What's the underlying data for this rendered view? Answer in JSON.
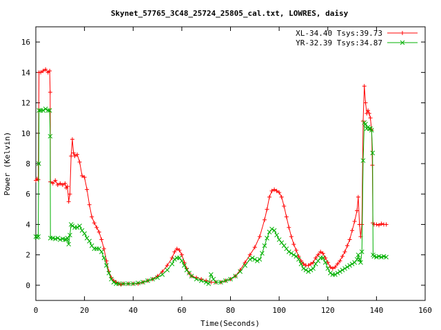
{
  "chart_data": {
    "type": "line",
    "title": "Skynet_57765_3C48_25724_25805_cal.txt, LOWRES, daisy",
    "xlabel": "Time(Seconds)",
    "ylabel": "Power (Kelvin)",
    "xlim": [
      0,
      160
    ],
    "ylim": [
      -1,
      17
    ],
    "x_ticks": [
      0,
      20,
      40,
      60,
      80,
      100,
      120,
      140,
      160
    ],
    "y_ticks": [
      0,
      2,
      4,
      6,
      8,
      10,
      12,
      14,
      16
    ],
    "grid": false,
    "legend_position": "top-right",
    "series": [
      {
        "name": "XL-34.40 Tsys:39.73",
        "color": "#ff0000",
        "marker": "plus",
        "points": [
          [
            0,
            6.9
          ],
          [
            0.5,
            7.0
          ],
          [
            1,
            6.95
          ],
          [
            1.3,
            14.0
          ],
          [
            2,
            14.0
          ],
          [
            3,
            14.1
          ],
          [
            4,
            14.2
          ],
          [
            5,
            14.0
          ],
          [
            5.7,
            14.1
          ],
          [
            5.9,
            12.7
          ],
          [
            6,
            6.8
          ],
          [
            7,
            6.7
          ],
          [
            8,
            6.9
          ],
          [
            9,
            6.6
          ],
          [
            10,
            6.7
          ],
          [
            11,
            6.6
          ],
          [
            12,
            6.7
          ],
          [
            12.5,
            6.4
          ],
          [
            13,
            6.5
          ],
          [
            13.5,
            5.5
          ],
          [
            14,
            6.0
          ],
          [
            14.5,
            8.5
          ],
          [
            15,
            9.6
          ],
          [
            15.5,
            8.7
          ],
          [
            16,
            8.5
          ],
          [
            17,
            8.6
          ],
          [
            18,
            8.1
          ],
          [
            19,
            7.2
          ],
          [
            20,
            7.1
          ],
          [
            21,
            6.3
          ],
          [
            22,
            5.3
          ],
          [
            23,
            4.5
          ],
          [
            24,
            4.1
          ],
          [
            25,
            3.8
          ],
          [
            26,
            3.5
          ],
          [
            27,
            3.0
          ],
          [
            28,
            2.4
          ],
          [
            29,
            1.6
          ],
          [
            30,
            0.9
          ],
          [
            31,
            0.5
          ],
          [
            32,
            0.3
          ],
          [
            33,
            0.2
          ],
          [
            34,
            0.1
          ],
          [
            35,
            0.05
          ],
          [
            36,
            0.1
          ],
          [
            38,
            0.1
          ],
          [
            40,
            0.1
          ],
          [
            42,
            0.1
          ],
          [
            44,
            0.2
          ],
          [
            46,
            0.3
          ],
          [
            48,
            0.4
          ],
          [
            50,
            0.6
          ],
          [
            52,
            0.9
          ],
          [
            54,
            1.3
          ],
          [
            56,
            1.8
          ],
          [
            57,
            2.2
          ],
          [
            58,
            2.4
          ],
          [
            59,
            2.3
          ],
          [
            60,
            2.0
          ],
          [
            61,
            1.5
          ],
          [
            62,
            1.1
          ],
          [
            63,
            0.8
          ],
          [
            64,
            0.6
          ],
          [
            66,
            0.5
          ],
          [
            68,
            0.4
          ],
          [
            70,
            0.3
          ],
          [
            72,
            0.2
          ],
          [
            74,
            0.2
          ],
          [
            76,
            0.2
          ],
          [
            78,
            0.3
          ],
          [
            80,
            0.4
          ],
          [
            82,
            0.6
          ],
          [
            84,
            1.0
          ],
          [
            86,
            1.5
          ],
          [
            88,
            2.0
          ],
          [
            90,
            2.5
          ],
          [
            92,
            3.2
          ],
          [
            94,
            4.3
          ],
          [
            95,
            5.0
          ],
          [
            96,
            5.8
          ],
          [
            97,
            6.2
          ],
          [
            98,
            6.3
          ],
          [
            99,
            6.2
          ],
          [
            100,
            6.1
          ],
          [
            101,
            5.8
          ],
          [
            102,
            5.2
          ],
          [
            103,
            4.5
          ],
          [
            104,
            3.8
          ],
          [
            105,
            3.2
          ],
          [
            106,
            2.7
          ],
          [
            107,
            2.3
          ],
          [
            108,
            1.9
          ],
          [
            109,
            1.6
          ],
          [
            110,
            1.4
          ],
          [
            111,
            1.3
          ],
          [
            112,
            1.3
          ],
          [
            113,
            1.4
          ],
          [
            114,
            1.5
          ],
          [
            115,
            1.8
          ],
          [
            116,
            2.0
          ],
          [
            117,
            2.2
          ],
          [
            118,
            2.1
          ],
          [
            119,
            1.8
          ],
          [
            120,
            1.5
          ],
          [
            121,
            1.2
          ],
          [
            122,
            1.1
          ],
          [
            123,
            1.2
          ],
          [
            124,
            1.4
          ],
          [
            125,
            1.6
          ],
          [
            126,
            1.9
          ],
          [
            127,
            2.2
          ],
          [
            128,
            2.6
          ],
          [
            129,
            3.0
          ],
          [
            130,
            3.6
          ],
          [
            131,
            4.2
          ],
          [
            132,
            4.9
          ],
          [
            132.5,
            5.8
          ],
          [
            133,
            4.0
          ],
          [
            133.5,
            3.2
          ],
          [
            134,
            4.0
          ],
          [
            134.5,
            10.8
          ],
          [
            135,
            13.1
          ],
          [
            135.5,
            12.0
          ],
          [
            136,
            11.3
          ],
          [
            136.5,
            11.5
          ],
          [
            137,
            11.3
          ],
          [
            137.5,
            11.0
          ],
          [
            138,
            10.2
          ],
          [
            138.3,
            7.9
          ],
          [
            138.5,
            4.1
          ],
          [
            139,
            4.0
          ],
          [
            140,
            4.0
          ],
          [
            141,
            3.95
          ],
          [
            142,
            4.05
          ],
          [
            143,
            4.0
          ],
          [
            144,
            4.0
          ]
        ]
      },
      {
        "name": "YR-32.39 Tsys:34.87",
        "color": "#00b000",
        "marker": "cross",
        "points": [
          [
            0,
            3.2
          ],
          [
            0.5,
            3.15
          ],
          [
            1,
            3.2
          ],
          [
            1.2,
            8.0
          ],
          [
            1.3,
            11.5
          ],
          [
            2,
            11.5
          ],
          [
            3,
            11.5
          ],
          [
            4,
            11.6
          ],
          [
            5,
            11.5
          ],
          [
            5.7,
            11.5
          ],
          [
            5.9,
            9.8
          ],
          [
            6,
            3.1
          ],
          [
            7,
            3.1
          ],
          [
            8,
            3.05
          ],
          [
            9,
            3.1
          ],
          [
            10,
            3.0
          ],
          [
            11,
            3.05
          ],
          [
            12,
            3.0
          ],
          [
            12.5,
            3.0
          ],
          [
            13,
            3.1
          ],
          [
            13.5,
            2.7
          ],
          [
            14,
            3.3
          ],
          [
            14.5,
            4.0
          ],
          [
            15,
            3.9
          ],
          [
            16,
            3.8
          ],
          [
            17,
            3.8
          ],
          [
            18,
            3.9
          ],
          [
            19,
            3.6
          ],
          [
            20,
            3.4
          ],
          [
            21,
            3.1
          ],
          [
            22,
            2.9
          ],
          [
            23,
            2.6
          ],
          [
            24,
            2.4
          ],
          [
            25,
            2.4
          ],
          [
            26,
            2.4
          ],
          [
            27,
            2.2
          ],
          [
            28,
            1.8
          ],
          [
            29,
            1.3
          ],
          [
            30,
            0.8
          ],
          [
            31,
            0.4
          ],
          [
            32,
            0.2
          ],
          [
            33,
            0.1
          ],
          [
            34,
            0.1
          ],
          [
            36,
            0.1
          ],
          [
            38,
            0.1
          ],
          [
            40,
            0.1
          ],
          [
            42,
            0.15
          ],
          [
            44,
            0.2
          ],
          [
            46,
            0.3
          ],
          [
            48,
            0.4
          ],
          [
            50,
            0.5
          ],
          [
            52,
            0.7
          ],
          [
            54,
            1.0
          ],
          [
            56,
            1.4
          ],
          [
            57,
            1.7
          ],
          [
            58,
            1.8
          ],
          [
            59,
            1.8
          ],
          [
            60,
            1.6
          ],
          [
            61,
            1.3
          ],
          [
            62,
            1.0
          ],
          [
            63,
            0.8
          ],
          [
            64,
            0.6
          ],
          [
            66,
            0.4
          ],
          [
            68,
            0.3
          ],
          [
            70,
            0.2
          ],
          [
            71,
            0.1
          ],
          [
            72,
            0.7
          ],
          [
            73,
            0.4
          ],
          [
            74,
            0.2
          ],
          [
            76,
            0.2
          ],
          [
            78,
            0.3
          ],
          [
            80,
            0.4
          ],
          [
            82,
            0.6
          ],
          [
            84,
            0.9
          ],
          [
            86,
            1.3
          ],
          [
            88,
            1.7
          ],
          [
            89,
            1.8
          ],
          [
            90,
            1.7
          ],
          [
            91,
            1.6
          ],
          [
            92,
            1.7
          ],
          [
            93,
            2.1
          ],
          [
            94,
            2.6
          ],
          [
            95,
            3.1
          ],
          [
            96,
            3.5
          ],
          [
            97,
            3.7
          ],
          [
            98,
            3.6
          ],
          [
            99,
            3.3
          ],
          [
            100,
            3.0
          ],
          [
            101,
            2.8
          ],
          [
            102,
            2.6
          ],
          [
            103,
            2.4
          ],
          [
            104,
            2.2
          ],
          [
            105,
            2.1
          ],
          [
            106,
            2.0
          ],
          [
            107,
            1.9
          ],
          [
            108,
            1.7
          ],
          [
            109,
            1.4
          ],
          [
            110,
            1.1
          ],
          [
            111,
            1.0
          ],
          [
            112,
            0.9
          ],
          [
            113,
            1.0
          ],
          [
            114,
            1.1
          ],
          [
            115,
            1.4
          ],
          [
            116,
            1.6
          ],
          [
            117,
            1.8
          ],
          [
            118,
            1.8
          ],
          [
            119,
            1.5
          ],
          [
            120,
            1.1
          ],
          [
            121,
            0.8
          ],
          [
            122,
            0.7
          ],
          [
            123,
            0.7
          ],
          [
            124,
            0.8
          ],
          [
            125,
            0.9
          ],
          [
            126,
            1.0
          ],
          [
            127,
            1.1
          ],
          [
            128,
            1.2
          ],
          [
            129,
            1.3
          ],
          [
            130,
            1.4
          ],
          [
            131,
            1.5
          ],
          [
            132,
            1.7
          ],
          [
            132.5,
            2.0
          ],
          [
            133,
            1.7
          ],
          [
            133.5,
            1.5
          ],
          [
            134,
            2.2
          ],
          [
            134.5,
            8.2
          ],
          [
            135,
            10.7
          ],
          [
            135.5,
            10.6
          ],
          [
            136,
            10.3
          ],
          [
            136.5,
            10.4
          ],
          [
            137,
            10.3
          ],
          [
            137.5,
            10.3
          ],
          [
            138,
            10.2
          ],
          [
            138.4,
            8.7
          ],
          [
            138.6,
            2.0
          ],
          [
            139,
            1.9
          ],
          [
            140,
            1.85
          ],
          [
            141,
            1.9
          ],
          [
            142,
            1.85
          ],
          [
            143,
            1.9
          ],
          [
            144,
            1.85
          ]
        ]
      }
    ]
  }
}
